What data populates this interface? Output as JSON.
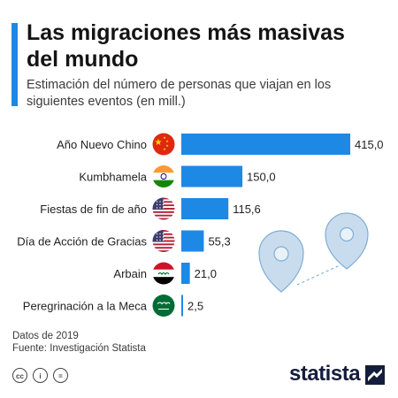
{
  "header": {
    "title": "Las migraciones más masivas del mundo",
    "subtitle": "Estimación del número de personas que viajan en los siguientes eventos (en mill.)"
  },
  "chart_data": {
    "type": "bar",
    "orientation": "horizontal",
    "categories": [
      "Año Nuevo Chino",
      "Kumbhamela",
      "Fiestas de fin de año",
      "Día de Acción de Gracias",
      "Arbain",
      "Peregrinación a la Meca"
    ],
    "values": [
      415.0,
      150.0,
      115.6,
      55.3,
      21.0,
      2.5
    ],
    "value_labels": [
      "415,0",
      "150,0",
      "115,6",
      "55,3",
      "21,0",
      "2,5"
    ],
    "flags": [
      "china-flag-icon",
      "india-flag-icon",
      "usa-flag-icon",
      "usa-flag-icon",
      "iraq-flag-icon",
      "saudi-arabia-flag-icon"
    ],
    "bar_color": "#1e88e5",
    "xlim": [
      0,
      415
    ],
    "grid": false,
    "legend": "none"
  },
  "decoration": {
    "icon": "map-pin-icon",
    "color": "#c9dcee"
  },
  "footer": {
    "data_note": "Datos de 2019",
    "source": "Fuente: Investigación Statista",
    "license_icons": [
      "cc",
      "i",
      "="
    ],
    "brand": "statista"
  },
  "colors": {
    "accent": "#1e88e5",
    "text": "#1f1f1f",
    "brand": "#141d3b"
  }
}
